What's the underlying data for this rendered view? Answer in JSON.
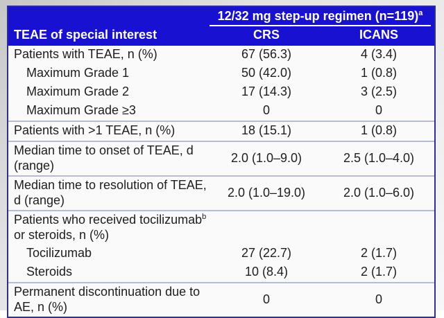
{
  "table": {
    "header": {
      "group_title": "12/32 mg step-up regimen (n=119)",
      "group_title_sup": "a",
      "col_label": "TEAE of special interest",
      "col_crs": "CRS",
      "col_icans": "ICANS"
    },
    "rows": [
      {
        "pre": "Patients with TEAE, n (%)",
        "sup": "",
        "post": "",
        "crs": "67 (56.3)",
        "icans": "4 (3.4)",
        "indent": false,
        "sep": false
      },
      {
        "pre": "Maximum Grade 1",
        "sup": "",
        "post": "",
        "crs": "50 (42.0)",
        "icans": "1 (0.8)",
        "indent": true,
        "sep": false
      },
      {
        "pre": "Maximum Grade 2",
        "sup": "",
        "post": "",
        "crs": "17 (14.3)",
        "icans": "3 (2.5)",
        "indent": true,
        "sep": false
      },
      {
        "pre": "Maximum Grade ≥3",
        "sup": "",
        "post": "",
        "crs": "0",
        "icans": "0",
        "indent": true,
        "sep": false
      },
      {
        "pre": "Patients with >1 TEAE, n (%)",
        "sup": "",
        "post": "",
        "crs": "18 (15.1)",
        "icans": "1 (0.8)",
        "indent": false,
        "sep": true
      },
      {
        "pre": "Median time to onset of TEAE, d (range)",
        "sup": "",
        "post": "",
        "crs": "2.0 (1.0–9.0)",
        "icans": "2.5 (1.0–4.0)",
        "indent": false,
        "sep": true
      },
      {
        "pre": "Median time to resolution of TEAE, d (range)",
        "sup": "",
        "post": "",
        "crs": "2.0 (1.0–19.0)",
        "icans": "2.0 (1.0–6.0)",
        "indent": false,
        "sep": true
      },
      {
        "pre": "Patients who received tocilizumab",
        "sup": "b",
        "post": " or steroids, n (%)",
        "crs": "",
        "icans": "",
        "indent": false,
        "sep": true
      },
      {
        "pre": "Tocilizumab",
        "sup": "",
        "post": "",
        "crs": "27 (22.7)",
        "icans": "2 (1.7)",
        "indent": true,
        "sep": false
      },
      {
        "pre": "Steroids",
        "sup": "",
        "post": "",
        "crs": "10 (8.4)",
        "icans": "2 (1.7)",
        "indent": true,
        "sep": false
      },
      {
        "pre": "Permanent discontinuation due to AE, n (%)",
        "sup": "",
        "post": "",
        "crs": "0",
        "icans": "0",
        "indent": false,
        "sep": true
      }
    ],
    "colors": {
      "header_bg": "#1811d2",
      "header_text": "#ffffff",
      "outer_border": "#2e2e96",
      "row_separator": "#b6bcd4",
      "body_bg": "#fbfafa",
      "body_text": "#1d1d1d"
    }
  }
}
